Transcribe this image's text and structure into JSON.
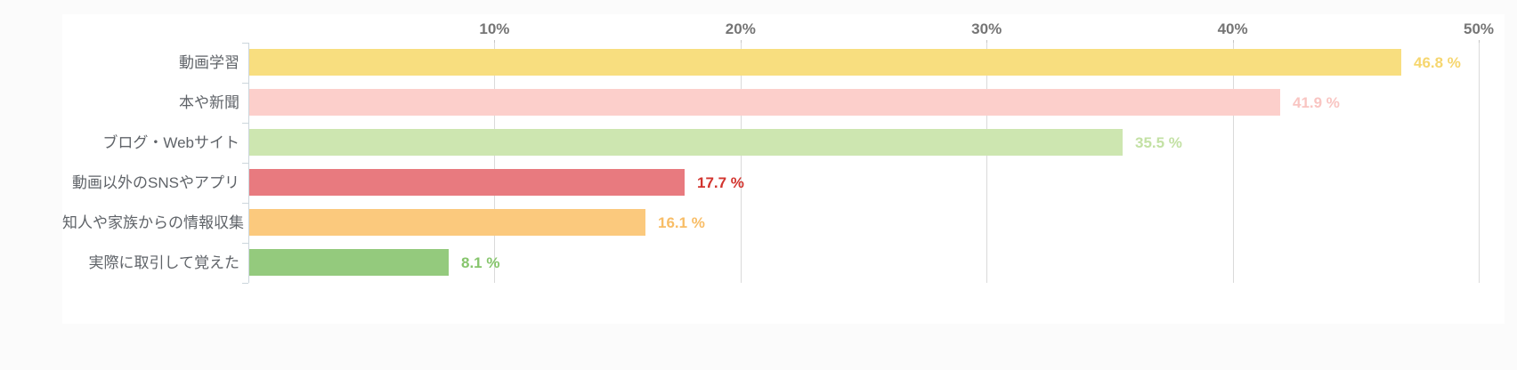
{
  "page": {
    "background_color": "#fbfbfb",
    "card_background_color": "#ffffff"
  },
  "chart_data": {
    "type": "bar",
    "orientation": "horizontal",
    "title": "",
    "xlabel": "",
    "ylabel": "",
    "categories": [
      "動画学習",
      "本や新聞",
      "ブログ・Webサイト",
      "動画以外のSNSやアプリ",
      "知人や家族からの情報収集",
      "実際に取引して覚えた"
    ],
    "values": [
      46.8,
      41.9,
      35.5,
      17.7,
      16.1,
      8.1
    ],
    "value_labels": [
      "46.8 %",
      "41.9 %",
      "35.5 %",
      "17.7 %",
      "16.1 %",
      "8.1 %"
    ],
    "bar_colors": [
      "#f8de7f",
      "#fccfcb",
      "#cde6b0",
      "#e87a7f",
      "#fbc97d",
      "#94ca7d"
    ],
    "value_label_colors": [
      "#f6d66e",
      "#f9c5c2",
      "#c3e1a4",
      "#d2342e",
      "#f8bd66",
      "#86c56c"
    ],
    "x_ticks": [
      "10%",
      "20%",
      "30%",
      "40%",
      "50%"
    ],
    "x_tick_values": [
      10,
      20,
      30,
      40,
      50
    ],
    "xlim": [
      0,
      50
    ],
    "grid": "vertical",
    "legend": "none",
    "axis_label_color": "#757575",
    "category_label_color": "#5f6368",
    "gridline_color": "#dadada",
    "axis_line_color": "#ccd6dc",
    "tick_color": "#c5c5c5"
  }
}
